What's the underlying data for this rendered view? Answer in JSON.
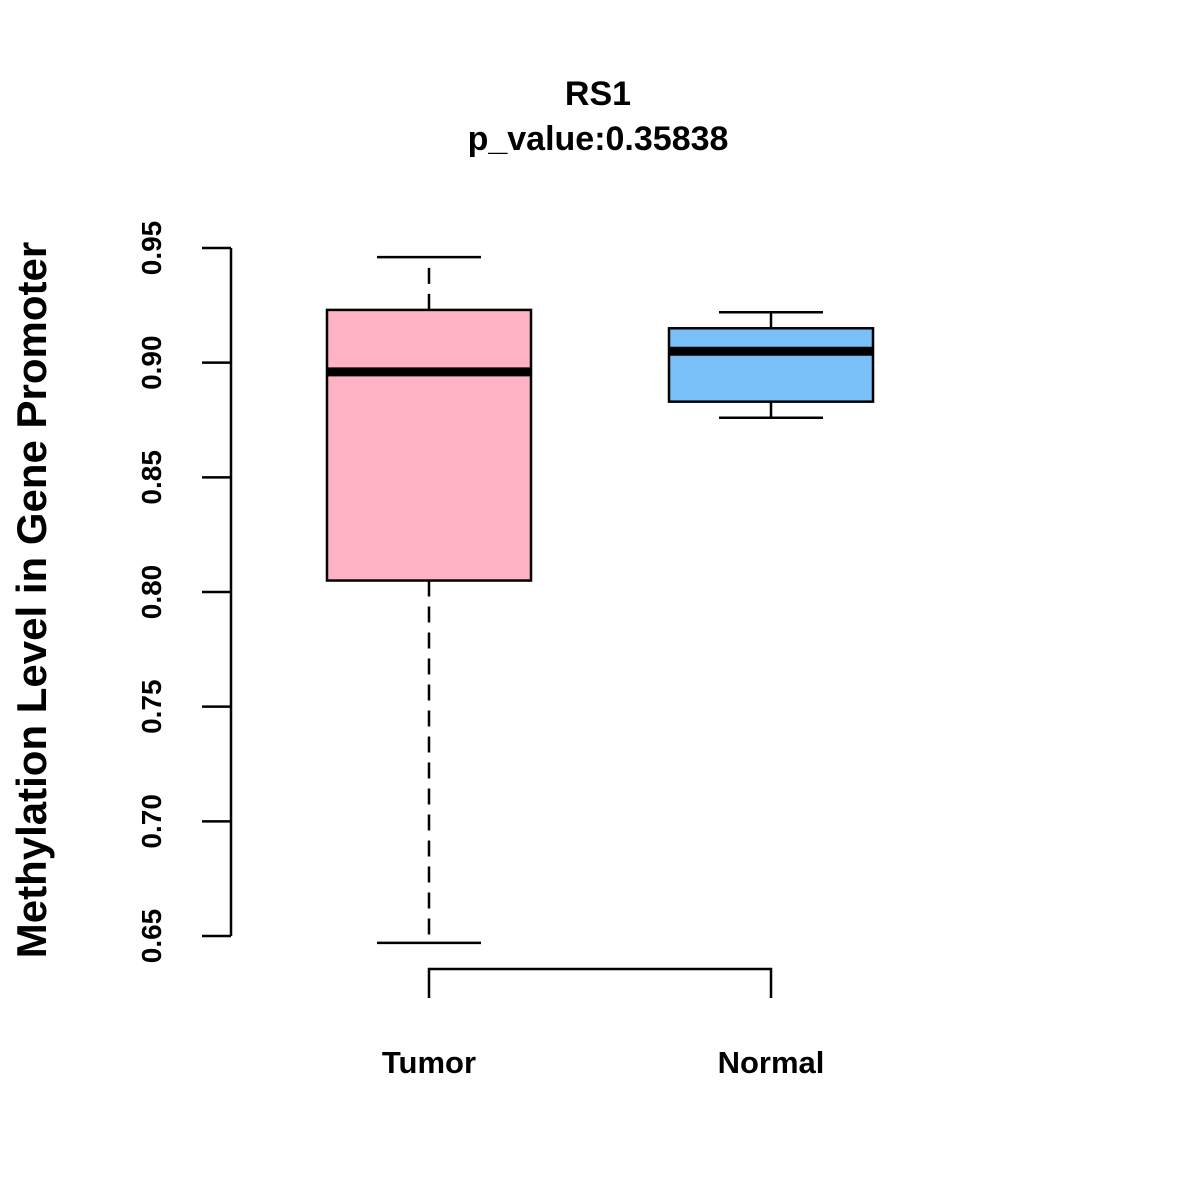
{
  "chart_data": {
    "type": "boxplot",
    "title": "RS1",
    "subtitle": "p_value:0.35838",
    "xlabel": "",
    "ylabel": "Methylation Level in Gene Promoter",
    "ylim": [
      0.636,
      0.954
    ],
    "yticks": [
      0.65,
      0.7,
      0.75,
      0.8,
      0.85,
      0.9,
      0.95
    ],
    "ytick_labels": [
      "0.65",
      "0.70",
      "0.75",
      "0.80",
      "0.85",
      "0.90",
      "0.95"
    ],
    "categories": [
      "Tumor",
      "Normal"
    ],
    "boxes": [
      {
        "name": "Tumor",
        "color": "#FFB2C4",
        "whisker_low": 0.647,
        "q1": 0.805,
        "median": 0.896,
        "q3": 0.923,
        "whisker_high": 0.946
      },
      {
        "name": "Normal",
        "color": "#78C0F7",
        "whisker_low": 0.876,
        "q1": 0.883,
        "median": 0.905,
        "q3": 0.915,
        "whisker_high": 0.922
      }
    ],
    "grid": false
  }
}
